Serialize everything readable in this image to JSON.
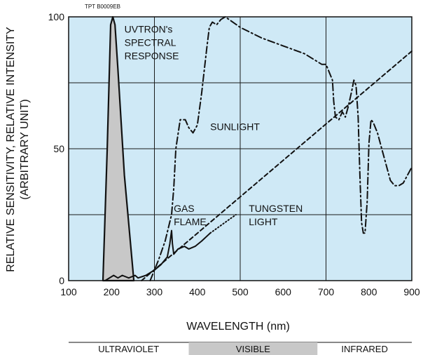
{
  "chart_data": {
    "type": "line",
    "ref_code": "TPT B0009EB",
    "xlabel": "WAVELENGTH (nm)",
    "ylabel_line1": "RELATIVE SENSITIVITY, RELATIVE INTENSITY",
    "ylabel_line2": "(ARBITRARY UNIT)",
    "xlim": [
      100,
      900
    ],
    "ylim": [
      0,
      100
    ],
    "x_ticks": [
      100,
      200,
      300,
      400,
      500,
      600,
      700,
      800,
      900
    ],
    "y_ticks": [
      0,
      50,
      100
    ],
    "grid": true,
    "plot_bg": "#cfe9f6",
    "grid_color": "#1a1a1a",
    "annotations": [
      {
        "id": "uvtron",
        "lines": [
          "UVTRON's",
          "SPECTRAL",
          "RESPONSE"
        ],
        "x": 230,
        "y": 94
      },
      {
        "id": "sunlight",
        "lines": [
          "SUNLIGHT"
        ],
        "x": 430,
        "y": 57
      },
      {
        "id": "gas",
        "lines": [
          "GAS",
          "FLAME"
        ],
        "x": 345,
        "y": 26
      },
      {
        "id": "tungsten",
        "lines": [
          "TUNGSTEN",
          "LIGHT"
        ],
        "x": 520,
        "y": 26
      }
    ],
    "series": [
      {
        "id": "uvtron",
        "style": "solid-filled",
        "fill": "#c8c8c8",
        "x": [
          180,
          190,
          198,
          203,
          208,
          215,
          230,
          252
        ],
        "y": [
          0,
          50,
          97,
          100,
          97,
          80,
          40,
          0
        ]
      },
      {
        "id": "gas",
        "style": "solid",
        "x": [
          185,
          205,
          215,
          225,
          240,
          255,
          262,
          280,
          300,
          315,
          330,
          336,
          340,
          342,
          345,
          355,
          370,
          380,
          395,
          410,
          430
        ],
        "y": [
          0,
          2,
          1,
          2,
          1,
          2,
          1,
          2,
          4,
          6,
          9,
          14,
          19,
          14,
          10,
          12,
          13,
          12,
          13,
          15,
          18
        ]
      },
      {
        "id": "tungsten",
        "style": "dotted",
        "x": [
          430,
          490
        ],
        "y": [
          18,
          25
        ]
      },
      {
        "id": "sunlight",
        "style": "dash-dot",
        "x": [
          290,
          310,
          325,
          340,
          345,
          350,
          360,
          372,
          380,
          390,
          400,
          410,
          422,
          428,
          435,
          445,
          455,
          465,
          500,
          550,
          600,
          650,
          680,
          690,
          700,
          715,
          718,
          722,
          730,
          738,
          745,
          752,
          760,
          765,
          770,
          775,
          779,
          783,
          787,
          791,
          796,
          800,
          805,
          810,
          820,
          830,
          840,
          850,
          860,
          870,
          880,
          890,
          900
        ],
        "y": [
          0,
          8,
          15,
          25,
          35,
          50,
          61,
          61,
          58,
          56,
          59,
          71,
          88,
          96,
          98,
          97,
          99,
          100,
          96,
          92,
          89,
          86,
          83,
          82,
          82,
          76,
          68,
          62,
          61,
          64,
          62,
          66,
          72,
          76,
          74,
          62,
          40,
          22,
          18,
          18,
          30,
          52,
          61,
          60,
          56,
          50,
          44,
          38,
          36,
          36,
          37,
          40,
          43
        ]
      },
      {
        "id": "tungsten_light",
        "style": "dashed",
        "x": [
          270,
          900
        ],
        "y": [
          0,
          87
        ]
      }
    ]
  },
  "regions": [
    {
      "label": "ULTRAVIOLET",
      "from": 100,
      "to": 380,
      "shaded": false
    },
    {
      "label": "VISIBLE",
      "from": 380,
      "to": 680,
      "shaded": true
    },
    {
      "label": "INFRARED",
      "from": 680,
      "to": 900,
      "shaded": false
    }
  ]
}
